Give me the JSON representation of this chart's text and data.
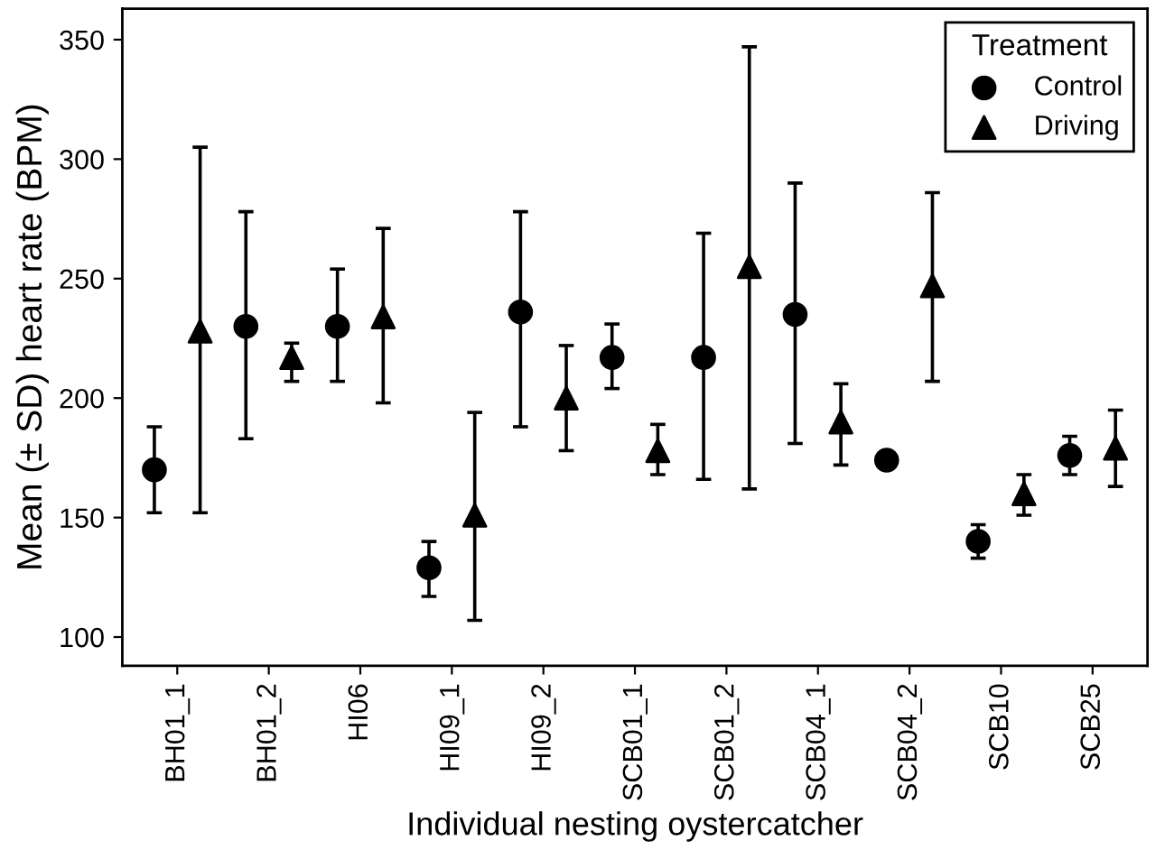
{
  "chart_data": {
    "type": "scatter",
    "xlabel": "Individual nesting oystercatcher",
    "ylabel": "Mean (± SD) heart rate (BPM)",
    "legend_title": "Treatment",
    "legend": "top right",
    "grid": false,
    "categories": [
      "BH01_1",
      "BH01_2",
      "HI06",
      "HI09_1",
      "HI09_2",
      "SCB01_1",
      "SCB01_2",
      "SCB04_1",
      "SCB04_2",
      "SCB10",
      "SCB25"
    ],
    "ylim": [
      88,
      363
    ],
    "yticks": [
      100,
      150,
      200,
      250,
      300,
      350
    ],
    "series": [
      {
        "name": "Control",
        "color": "#000000",
        "marker": "circle",
        "values": [
          170,
          230,
          230,
          129,
          236,
          217,
          217,
          235,
          174,
          140,
          176
        ],
        "errors": [
          [
            152,
            188
          ],
          [
            183,
            278
          ],
          [
            207,
            254
          ],
          [
            117,
            140
          ],
          [
            188,
            278
          ],
          [
            204,
            231
          ],
          [
            166,
            269
          ],
          [
            181,
            290
          ],
          null,
          [
            133,
            147
          ],
          [
            168,
            184
          ]
        ]
      },
      {
        "name": "Driving",
        "color": "#000000",
        "marker": "triangle",
        "values": [
          228,
          217,
          234,
          151,
          200,
          178,
          255,
          190,
          247,
          160,
          179
        ],
        "errors": [
          [
            152,
            305
          ],
          [
            207,
            223
          ],
          [
            198,
            271
          ],
          [
            107,
            194
          ],
          [
            178,
            222
          ],
          [
            168,
            189
          ],
          [
            162,
            347
          ],
          [
            172,
            206
          ],
          [
            207,
            286
          ],
          [
            151,
            168
          ],
          [
            163,
            195
          ]
        ]
      }
    ]
  }
}
